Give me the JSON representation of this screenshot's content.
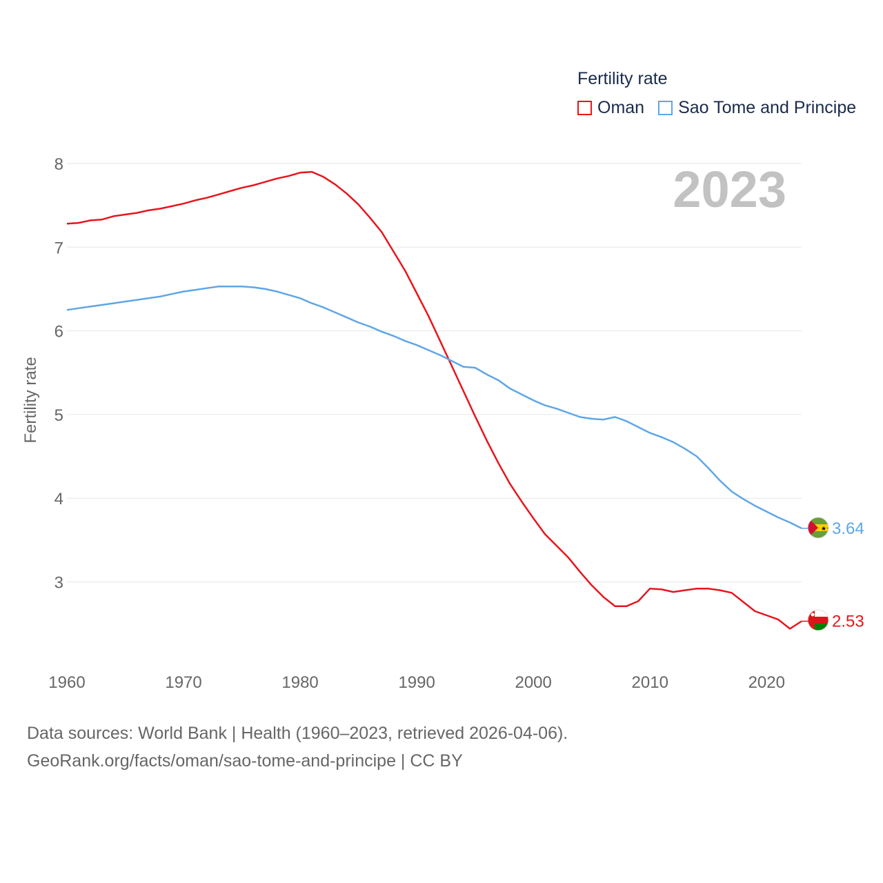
{
  "legend": {
    "title": "Fertility rate",
    "items": [
      {
        "label": "Oman",
        "color": "#e8141c"
      },
      {
        "label": "Sao Tome and Principe",
        "color": "#5ea6e6"
      }
    ]
  },
  "year_label": "2023",
  "sources": {
    "line1": "Data sources: World Bank | Health (1960–2023, retrieved 2026-04-06).",
    "line2": "GeoRank.org/facts/oman/sao-tome-and-principe | CC BY"
  },
  "chart_data": {
    "type": "line",
    "title": "Fertility rate",
    "ylabel": "Fertility rate",
    "xlabel": "",
    "xlim": [
      1960,
      2023
    ],
    "ylim": [
      2.2,
      8
    ],
    "x_ticks": [
      1960,
      1970,
      1980,
      1990,
      2000,
      2010,
      2020
    ],
    "y_ticks": [
      3,
      4,
      5,
      6,
      7,
      8
    ],
    "grid": true,
    "x": [
      1960,
      1961,
      1962,
      1963,
      1964,
      1965,
      1966,
      1967,
      1968,
      1969,
      1970,
      1971,
      1972,
      1973,
      1974,
      1975,
      1976,
      1977,
      1978,
      1979,
      1980,
      1981,
      1982,
      1983,
      1984,
      1985,
      1986,
      1987,
      1988,
      1989,
      1990,
      1991,
      1992,
      1993,
      1994,
      1995,
      1996,
      1997,
      1998,
      1999,
      2000,
      2001,
      2002,
      2003,
      2004,
      2005,
      2006,
      2007,
      2008,
      2009,
      2010,
      2011,
      2012,
      2013,
      2014,
      2015,
      2016,
      2017,
      2018,
      2019,
      2020,
      2021,
      2022,
      2023
    ],
    "series": [
      {
        "name": "Oman",
        "color": "#e8141c",
        "end_label": "2.53",
        "values": [
          7.28,
          7.29,
          7.32,
          7.33,
          7.37,
          7.39,
          7.41,
          7.44,
          7.46,
          7.49,
          7.52,
          7.56,
          7.59,
          7.63,
          7.67,
          7.71,
          7.74,
          7.78,
          7.82,
          7.85,
          7.89,
          7.9,
          7.84,
          7.75,
          7.64,
          7.51,
          7.35,
          7.18,
          6.95,
          6.72,
          6.45,
          6.18,
          5.88,
          5.58,
          5.28,
          4.98,
          4.69,
          4.42,
          4.17,
          3.96,
          3.76,
          3.57,
          3.43,
          3.29,
          3.12,
          2.96,
          2.82,
          2.71,
          2.71,
          2.77,
          2.92,
          2.91,
          2.88,
          2.9,
          2.92,
          2.92,
          2.9,
          2.87,
          2.76,
          2.65,
          2.6,
          2.55,
          2.44,
          2.53
        ]
      },
      {
        "name": "Sao Tome and Principe",
        "color": "#5ea6e6",
        "end_label": "3.64",
        "values": [
          6.25,
          6.27,
          6.29,
          6.31,
          6.33,
          6.35,
          6.37,
          6.39,
          6.41,
          6.44,
          6.47,
          6.49,
          6.51,
          6.53,
          6.53,
          6.53,
          6.52,
          6.5,
          6.47,
          6.43,
          6.39,
          6.33,
          6.28,
          6.22,
          6.16,
          6.1,
          6.05,
          5.99,
          5.94,
          5.88,
          5.83,
          5.77,
          5.71,
          5.64,
          5.57,
          5.56,
          5.48,
          5.41,
          5.31,
          5.24,
          5.17,
          5.11,
          5.07,
          5.02,
          4.97,
          4.95,
          4.94,
          4.97,
          4.92,
          4.85,
          4.78,
          4.73,
          4.67,
          4.59,
          4.5,
          4.36,
          4.21,
          4.08,
          3.99,
          3.91,
          3.84,
          3.77,
          3.71,
          3.64
        ]
      }
    ]
  }
}
